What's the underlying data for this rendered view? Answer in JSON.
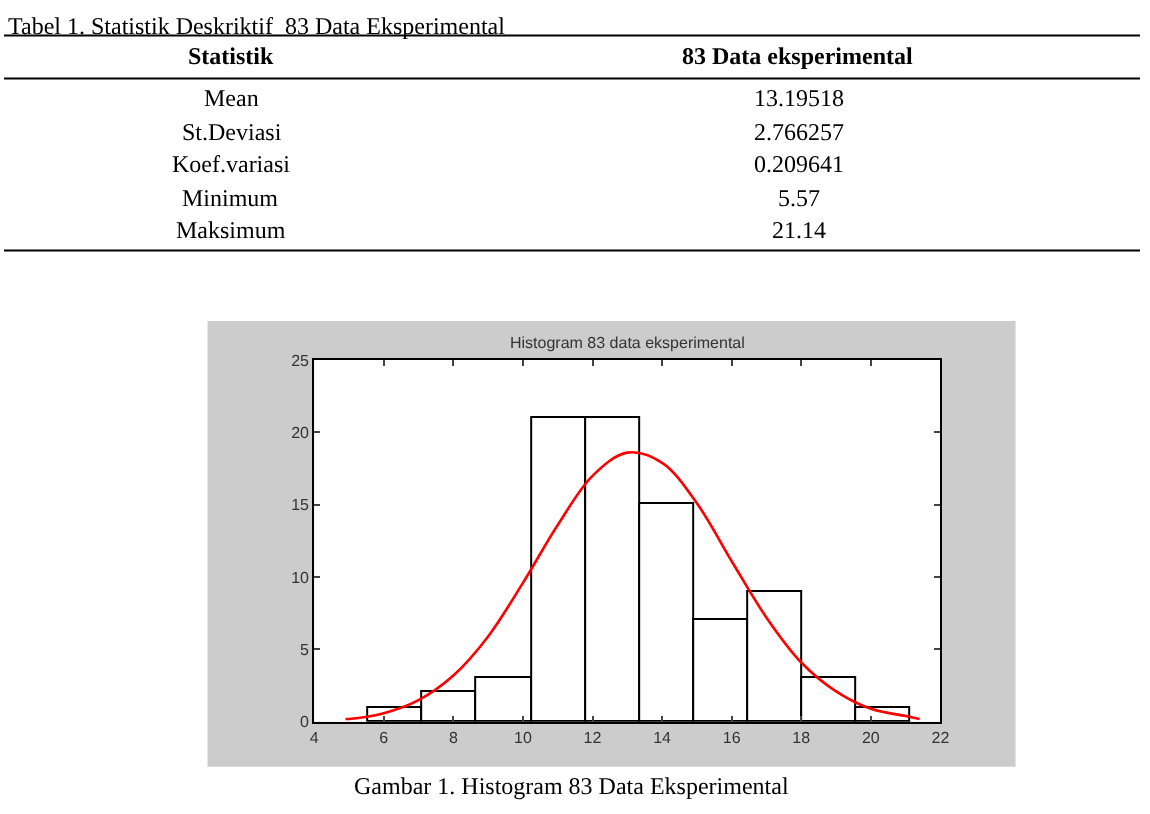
{
  "chart_data": {
    "type": "histogram",
    "title": "Histogram 83 data eksperimental",
    "bins": [
      5.57,
      7.127,
      8.684,
      10.241,
      11.798,
      13.355,
      14.912,
      16.469,
      18.026,
      19.583,
      21.14
    ],
    "series": [
      {
        "color": "#ffffff",
        "values": [
          1,
          2,
          3,
          21,
          21,
          15,
          7,
          9,
          3,
          1
        ]
      },
      {
        "type": "line",
        "color": "#ff0000",
        "x": [
          4.9,
          5,
          6,
          7,
          8,
          9,
          10,
          11,
          12,
          13,
          14,
          15,
          16,
          17,
          18,
          19,
          20,
          21,
          21.4
        ],
        "values": [
          0.2,
          0.2,
          0.6,
          1.5,
          3.2,
          5.9,
          9.6,
          13.6,
          17.0,
          18.6,
          17.9,
          15.1,
          11.1,
          7.2,
          4.1,
          2.1,
          0.9,
          0.4,
          0.2
        ]
      }
    ],
    "xlim": [
      4,
      22
    ],
    "xticks": [
      4,
      6,
      8,
      10,
      12,
      14,
      16,
      18,
      20,
      22
    ],
    "ylim": [
      0,
      25
    ],
    "yticks": [
      0,
      5,
      10,
      15,
      20,
      25
    ],
    "marker": "none",
    "line_style": "solid",
    "annotations": [
      "Tabel 1. Statistik Deskriktif  83 Data Eksperimental",
      "Statistik",
      "83 Data eksperimental",
      "Mean",
      "13.19518",
      "St.Deviasi",
      "2.766257",
      "Koef.variasi",
      "0.209641",
      "Minimum",
      "5.57",
      "Maksimum",
      "21.14",
      "Gambar 1. Histogram 83 Data Eksperimental"
    ]
  }
}
